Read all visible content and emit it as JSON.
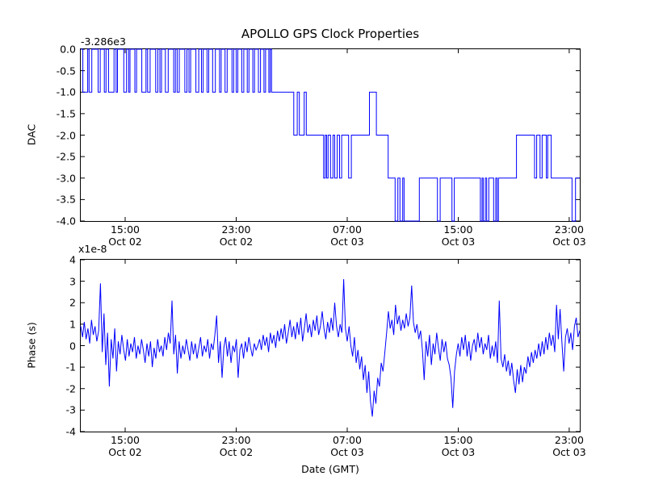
{
  "figure": {
    "title": "APOLLO GPS Clock Properties"
  },
  "style": {
    "line_color": "#0000ff",
    "axis_color": "#000000",
    "background": "#ffffff"
  },
  "chart_data": [
    {
      "type": "line",
      "id": "dac",
      "title": "APOLLO GPS Clock Properties",
      "ylabel": "DAC",
      "y_offset_label": "-3.286e3",
      "ylim": [
        -4,
        0
      ],
      "ytick_step": 0.5,
      "x_range_hours": [
        11.8,
        47.76
      ],
      "grid": false,
      "legend": "none",
      "draw_style": "steps-post",
      "xticks": [
        {
          "hour": 15,
          "time": "15:00",
          "date": "Oct 02"
        },
        {
          "hour": 23,
          "time": "23:00",
          "date": "Oct 02"
        },
        {
          "hour": 31,
          "time": "07:00",
          "date": "Oct 03"
        },
        {
          "hour": 39,
          "time": "15:00",
          "date": "Oct 03"
        },
        {
          "hour": 47,
          "time": "23:00",
          "date": "Oct 03"
        }
      ],
      "yticks": [
        {
          "v": 0,
          "label": "0.0"
        },
        {
          "v": -0.5,
          "label": "-0.5"
        },
        {
          "v": -1,
          "label": "-1.0"
        },
        {
          "v": -1.5,
          "label": "-1.5"
        },
        {
          "v": -2,
          "label": "-2.0"
        },
        {
          "v": -2.5,
          "label": "-2.5"
        },
        {
          "v": -3,
          "label": "-3.0"
        },
        {
          "v": -3.5,
          "label": "-3.5"
        },
        {
          "v": -4,
          "label": "-4.0"
        }
      ],
      "steps_hour_value": [
        [
          11.8,
          0
        ],
        [
          11.95,
          -1
        ],
        [
          12.3,
          0
        ],
        [
          12.4,
          -1
        ],
        [
          12.6,
          0
        ],
        [
          13.05,
          -1
        ],
        [
          13.2,
          0
        ],
        [
          13.5,
          -1
        ],
        [
          13.62,
          0
        ],
        [
          13.8,
          -1
        ],
        [
          14.2,
          0
        ],
        [
          14.35,
          -1
        ],
        [
          14.45,
          0
        ],
        [
          14.9,
          -1
        ],
        [
          15.1,
          0
        ],
        [
          15.25,
          -1
        ],
        [
          15.35,
          0
        ],
        [
          15.7,
          -1
        ],
        [
          15.82,
          0
        ],
        [
          16.2,
          -1
        ],
        [
          16.5,
          0
        ],
        [
          16.62,
          -1
        ],
        [
          16.8,
          0
        ],
        [
          17.2,
          -1
        ],
        [
          17.35,
          0
        ],
        [
          17.5,
          -1
        ],
        [
          17.62,
          0
        ],
        [
          17.9,
          -1
        ],
        [
          18.1,
          0
        ],
        [
          18.5,
          -1
        ],
        [
          18.62,
          0
        ],
        [
          18.75,
          -1
        ],
        [
          18.9,
          0
        ],
        [
          19.3,
          -1
        ],
        [
          19.45,
          0
        ],
        [
          19.6,
          -1
        ],
        [
          19.72,
          0
        ],
        [
          20.1,
          -1
        ],
        [
          20.3,
          0
        ],
        [
          20.5,
          -1
        ],
        [
          20.62,
          0
        ],
        [
          20.9,
          -1
        ],
        [
          21.02,
          0
        ],
        [
          21.3,
          -1
        ],
        [
          21.5,
          0
        ],
        [
          21.8,
          -1
        ],
        [
          21.92,
          0
        ],
        [
          22.2,
          -1
        ],
        [
          22.35,
          0
        ],
        [
          22.7,
          -1
        ],
        [
          22.82,
          0
        ],
        [
          23.0,
          -1
        ],
        [
          23.12,
          0
        ],
        [
          23.4,
          -1
        ],
        [
          23.55,
          0
        ],
        [
          23.8,
          -1
        ],
        [
          23.92,
          0
        ],
        [
          24.2,
          -1
        ],
        [
          24.32,
          0
        ],
        [
          24.6,
          -1
        ],
        [
          24.75,
          0
        ],
        [
          25.0,
          -1
        ],
        [
          25.12,
          0
        ],
        [
          25.35,
          -1
        ],
        [
          25.45,
          0
        ],
        [
          25.55,
          -1
        ],
        [
          27.15,
          -2
        ],
        [
          27.4,
          -1
        ],
        [
          27.55,
          -2
        ],
        [
          27.9,
          -1
        ],
        [
          28.05,
          -2
        ],
        [
          29.3,
          -3
        ],
        [
          29.42,
          -2
        ],
        [
          29.52,
          -3
        ],
        [
          29.62,
          -2
        ],
        [
          29.8,
          -3
        ],
        [
          29.98,
          -2
        ],
        [
          30.1,
          -3
        ],
        [
          30.28,
          -2
        ],
        [
          30.45,
          -3
        ],
        [
          30.6,
          -2
        ],
        [
          31.1,
          -3
        ],
        [
          31.3,
          -2
        ],
        [
          32.6,
          -1
        ],
        [
          33.1,
          -2
        ],
        [
          33.95,
          -3
        ],
        [
          34.45,
          -4
        ],
        [
          34.65,
          -3
        ],
        [
          34.8,
          -4
        ],
        [
          35.0,
          -3
        ],
        [
          35.1,
          -4
        ],
        [
          36.2,
          -3
        ],
        [
          37.5,
          -4
        ],
        [
          37.7,
          -3
        ],
        [
          38.55,
          -4
        ],
        [
          38.72,
          -3
        ],
        [
          40.6,
          -4
        ],
        [
          40.72,
          -3
        ],
        [
          40.8,
          -4
        ],
        [
          40.95,
          -3
        ],
        [
          41.05,
          -4
        ],
        [
          41.2,
          -3
        ],
        [
          41.55,
          -4
        ],
        [
          41.7,
          -3
        ],
        [
          41.8,
          -4
        ],
        [
          41.9,
          -3
        ],
        [
          43.2,
          -2
        ],
        [
          44.5,
          -3
        ],
        [
          44.65,
          -2
        ],
        [
          44.9,
          -3
        ],
        [
          45.05,
          -2
        ],
        [
          45.35,
          -3
        ],
        [
          45.45,
          -2
        ],
        [
          45.7,
          -3
        ],
        [
          47.2,
          -4
        ],
        [
          47.45,
          -3
        ]
      ]
    },
    {
      "type": "line",
      "id": "phase",
      "ylabel": "Phase (s)",
      "y_scale_label": "x1e-8",
      "xlabel": "Date (GMT)",
      "ylim": [
        -4,
        4
      ],
      "ytick_step": 1,
      "x_range_hours": [
        11.8,
        47.76
      ],
      "grid": false,
      "legend": "none",
      "xticks": [
        {
          "hour": 15,
          "time": "15:00",
          "date": "Oct 02"
        },
        {
          "hour": 23,
          "time": "23:00",
          "date": "Oct 02"
        },
        {
          "hour": 31,
          "time": "07:00",
          "date": "Oct 03"
        },
        {
          "hour": 39,
          "time": "15:00",
          "date": "Oct 03"
        },
        {
          "hour": 47,
          "time": "23:00",
          "date": "Oct 03"
        }
      ],
      "yticks": [
        {
          "v": 4,
          "label": "4"
        },
        {
          "v": 3,
          "label": "3"
        },
        {
          "v": 2,
          "label": "2"
        },
        {
          "v": 1,
          "label": "1"
        },
        {
          "v": 0,
          "label": "0"
        },
        {
          "v": -1,
          "label": "-1"
        },
        {
          "v": -2,
          "label": "-2"
        },
        {
          "v": -3,
          "label": "-3"
        },
        {
          "v": -4,
          "label": "-4"
        }
      ],
      "values_1e8": [
        0.9,
        0.4,
        1.1,
        0.3,
        0.8,
        0.1,
        1.2,
        0.5,
        0.9,
        0.2,
        0.7,
        2.9,
        -0.3,
        1.5,
        -0.9,
        0.6,
        -1.9,
        0.3,
        -0.6,
        0.8,
        -1.2,
        0.2,
        -0.4,
        0.5,
        -0.2,
        -0.7,
        0.3,
        -0.5,
        0.1,
        -0.3,
        0.4,
        -0.6,
        0.0,
        -0.4,
        0.3,
        -0.2,
        -0.8,
        0.1,
        -0.5,
        0.2,
        -1.0,
        -0.1,
        -0.6,
        0.3,
        -0.3,
        0.0,
        -0.5,
        0.4,
        -0.2,
        0.6,
        0.1,
        2.1,
        -0.4,
        0.5,
        -1.3,
        0.2,
        -0.6,
        0.0,
        -0.4,
        0.3,
        -0.2,
        -0.7,
        0.2,
        -0.4,
        0.1,
        -0.6,
        -0.1,
        0.4,
        -0.5,
        0.0,
        -0.3,
        0.3,
        -0.6,
        0.1,
        -0.2,
        0.5,
        1.4,
        -0.8,
        0.2,
        -1.5,
        -0.1,
        0.4,
        -0.5,
        0.2,
        -0.8,
        0.0,
        -0.3,
        0.3,
        -1.5,
        -0.2,
        0.1,
        -0.6,
        0.2,
        -0.3,
        0.4,
        -0.1,
        -0.5,
        0.1,
        -0.2,
        0.0,
        0.3,
        -0.2,
        0.5,
        0.0,
        0.4,
        -0.3,
        0.6,
        0.1,
        0.5,
        -0.1,
        0.7,
        0.2,
        0.8,
        0.3,
        1.0,
        0.1,
        0.6,
        1.2,
        0.4,
        0.9,
        0.3,
        1.1,
        0.5,
        1.3,
        0.2,
        0.8,
        1.5,
        0.6,
        1.0,
        0.4,
        1.2,
        0.7,
        1.4,
        0.5,
        0.9,
        1.6,
        0.8,
        0.3,
        1.1,
        0.6,
        1.3,
        0.7,
        2.0,
        0.9,
        0.4,
        1.0,
        0.6,
        3.1,
        0.8,
        0.2,
        0.9,
        0.0,
        -0.5,
        0.4,
        -0.8,
        -0.2,
        -1.1,
        -0.5,
        -1.6,
        -0.9,
        -2.2,
        -1.2,
        -2.6,
        -3.3,
        -2.1,
        -2.7,
        -1.5,
        -1.9,
        -0.8,
        -1.2,
        -0.3,
        0.6,
        1.6,
        0.8,
        1.2,
        0.5,
        1.9,
        1.0,
        1.4,
        0.7,
        1.2,
        0.8,
        1.5,
        0.9,
        1.3,
        2.8,
        1.1,
        0.6,
        1.0,
        0.3,
        0.7,
        -0.2,
        -1.6,
        0.2,
        -0.5,
        0.5,
        -0.9,
        0.1,
        -0.4,
        0.6,
        -0.1,
        -0.7,
        0.3,
        -0.3,
        0.2,
        -0.6,
        -0.9,
        -1.5,
        -2.9,
        -1.2,
        -0.4,
        0.1,
        -0.5,
        0.4,
        -0.2,
        0.5,
        -0.5,
        0.2,
        -0.7,
        0.0,
        0.3,
        -0.3,
        0.6,
        -0.1,
        0.4,
        -0.4,
        0.1,
        -0.2,
        0.5,
        -0.6,
        0.0,
        -0.5,
        0.2,
        -0.8,
        2.1,
        -0.6,
        -1.0,
        -0.4,
        -1.2,
        -0.7,
        -1.4,
        -0.8,
        -1.6,
        -2.2,
        -1.1,
        -1.8,
        -0.9,
        -1.7,
        -1.0,
        -1.3,
        -0.5,
        -1.0,
        -0.3,
        -0.8,
        -0.2,
        -0.6,
        0.1,
        -0.5,
        0.2,
        -0.4,
        0.4,
        -0.2,
        0.6,
        0.0,
        0.5,
        -0.3,
        1.9,
        0.3,
        1.7,
        0.2,
        -1.2,
        0.4,
        0.8,
        0.1,
        0.6,
        -0.2,
        0.9,
        1.3,
        0.4,
        0.7
      ]
    }
  ]
}
